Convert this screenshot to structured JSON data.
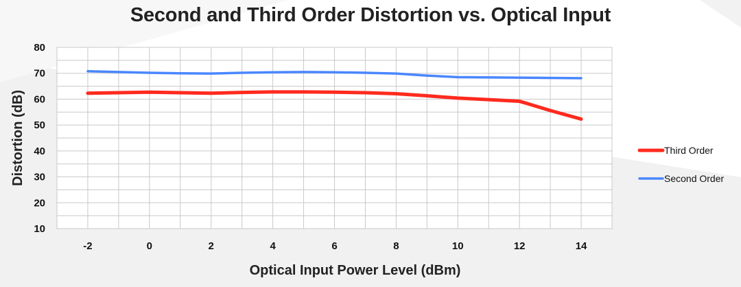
{
  "chart_data": {
    "type": "line",
    "title": "Second and Third Order Distortion vs. Optical Input",
    "xlabel": "Optical Input Power Level (dBm)",
    "ylabel": "Distortion (dB)",
    "x": [
      -2,
      -1,
      0,
      1,
      2,
      3,
      4,
      5,
      6,
      7,
      8,
      9,
      10,
      11,
      12,
      13,
      14
    ],
    "x_tick_labels": [
      "-2",
      "0",
      "2",
      "4",
      "6",
      "8",
      "10",
      "12",
      "14"
    ],
    "x_tick_values": [
      -2,
      0,
      2,
      4,
      6,
      8,
      10,
      12,
      14
    ],
    "y_ticks": [
      10,
      20,
      30,
      40,
      50,
      60,
      70,
      80
    ],
    "ylim": [
      10,
      80
    ],
    "grid": true,
    "legend_position": "right",
    "series": [
      {
        "name": "Third Order",
        "color": "#ff2a1f",
        "values": [
          62.3,
          62.5,
          62.7,
          62.5,
          62.3,
          62.6,
          62.8,
          62.8,
          62.7,
          62.5,
          62.1,
          61.3,
          60.4,
          59.8,
          59.2,
          55.6,
          52.3
        ]
      },
      {
        "name": "Second Order",
        "color": "#4a86ff",
        "values": [
          70.8,
          70.5,
          70.2,
          70.0,
          69.9,
          70.2,
          70.4,
          70.5,
          70.4,
          70.2,
          69.9,
          69.1,
          68.5,
          68.4,
          68.3,
          68.2,
          68.1
        ]
      }
    ]
  }
}
